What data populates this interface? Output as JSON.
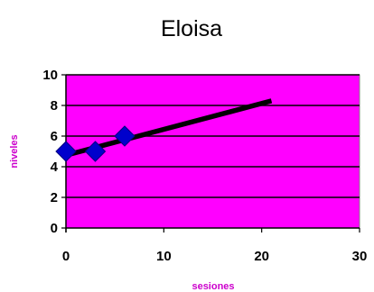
{
  "chart_data": {
    "type": "scatter",
    "title": "Eloisa",
    "xlabel": "sesiones",
    "ylabel": "niveles",
    "xlim": [
      0,
      30
    ],
    "ylim": [
      0,
      10
    ],
    "x_ticks": [
      "0",
      "10",
      "20",
      "30"
    ],
    "y_ticks": [
      "0",
      "2",
      "4",
      "6",
      "8",
      "10"
    ],
    "grid": true,
    "series": [
      {
        "type": "scatter",
        "marker": "diamond",
        "color": "#0000cc",
        "points": [
          {
            "x": 0,
            "y": 5
          },
          {
            "x": 3,
            "y": 5
          },
          {
            "x": 6,
            "y": 6
          }
        ]
      },
      {
        "type": "line",
        "color": "#000000",
        "points": [
          {
            "x": 0,
            "y": 4.75
          },
          {
            "x": 21,
            "y": 8.3
          }
        ]
      }
    ]
  },
  "colors": {
    "plot_background": "#ff00ff",
    "axis_label": "#cc00cc",
    "gridline": "#000000"
  }
}
